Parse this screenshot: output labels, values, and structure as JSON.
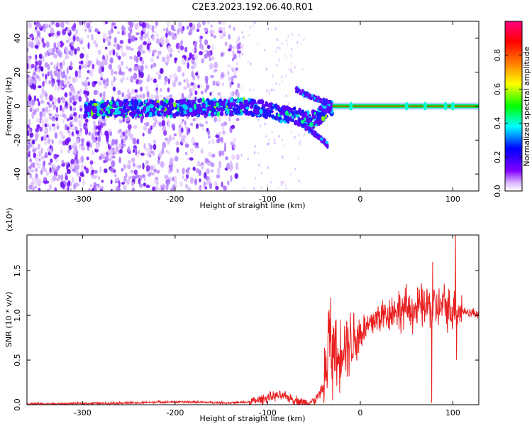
{
  "title": "C2E3.2023.192.06.40.R01",
  "chart_data": [
    {
      "type": "heatmap",
      "title": "C2E3.2023.192.06.40.R01",
      "xlabel": "Height of straight line (km)",
      "ylabel": "Frequency (Hz)",
      "xlim": [
        -360,
        128
      ],
      "ylim": [
        -50,
        50
      ],
      "x_ticks": [
        -300,
        -200,
        -100,
        0,
        100
      ],
      "x_tick_labels": [
        "-300",
        "-200",
        "-100",
        "0",
        "100"
      ],
      "y_ticks": [
        -40,
        -20,
        0,
        20,
        40
      ],
      "y_tick_labels": [
        "-40",
        "-20",
        "0",
        "20",
        "40"
      ],
      "colorbar": {
        "label": "Normalized spectral amplitude",
        "range": [
          0.0,
          1.0
        ],
        "ticks": [
          0.0,
          0.2,
          0.4,
          0.6,
          0.8
        ],
        "tick_labels": [
          "0.0",
          "0.2",
          "0.4",
          "0.6",
          "0.8"
        ],
        "colormap": "rainbow",
        "stops": [
          "#ffffff",
          "#8000ff",
          "#0000ff",
          "#00ffff",
          "#00ff00",
          "#ffff00",
          "#ff8000",
          "#ff0000",
          "#ff0080"
        ]
      },
      "features": [
        {
          "name": "noise cloud",
          "x_range": [
            -360,
            -130
          ],
          "y_range": [
            -50,
            50
          ],
          "amplitude": 0.05
        },
        {
          "name": "central band",
          "x": [
            -300,
            -200,
            -120,
            -80,
            -50,
            -30
          ],
          "y": [
            -2,
            -1,
            0,
            -5,
            -8,
            0
          ],
          "amplitude": 0.3
        },
        {
          "name": "upper branch",
          "x": [
            -70,
            -55,
            -40,
            -30
          ],
          "y": [
            10,
            6,
            3,
            1
          ],
          "amplitude": 0.15
        },
        {
          "name": "lower branch",
          "x": [
            -60,
            -45,
            -35
          ],
          "y": [
            -12,
            -18,
            -23
          ],
          "amplitude": 0.15
        },
        {
          "name": "tone line",
          "x_range": [
            -30,
            128
          ],
          "y": 0,
          "amplitude": 0.9
        }
      ],
      "grid": false
    },
    {
      "type": "line",
      "xlabel": "Height of straight line (km)",
      "ylabel": "SNR (10 * v/v)",
      "y_multiplier": "(x10⁴)",
      "xlim": [
        -360,
        128
      ],
      "ylim": [
        0,
        1.9
      ],
      "x_ticks": [
        -300,
        -200,
        -100,
        0,
        100
      ],
      "x_tick_labels": [
        "-300",
        "-200",
        "-100",
        "0",
        "100"
      ],
      "y_ticks": [
        0.0,
        0.5,
        1.0,
        1.5
      ],
      "y_tick_labels": [
        "0.0",
        "0.5",
        "1.0",
        "1.5"
      ],
      "color": "#e82020",
      "grid": false,
      "series": [
        {
          "x": [
            -360,
            -340,
            -320,
            -300,
            -280,
            -260,
            -240,
            -220,
            -200,
            -180,
            -160,
            -140,
            -120,
            -110,
            -100,
            -90,
            -80,
            -70,
            -60,
            -50,
            -45,
            -40,
            -36,
            -34,
            -32,
            -30,
            -28,
            -26,
            -24,
            -22,
            -20,
            -15,
            -10,
            -5,
            0,
            5,
            10,
            15,
            20,
            25,
            30,
            35,
            40,
            45,
            50,
            55,
            60,
            65,
            70,
            75,
            77,
            80,
            85,
            90,
            95,
            100,
            103,
            105,
            110,
            115,
            120,
            128
          ],
          "y": [
            0.01,
            0.01,
            0.01,
            0.015,
            0.015,
            0.02,
            0.02,
            0.03,
            0.03,
            0.03,
            0.025,
            0.02,
            0.03,
            0.05,
            0.08,
            0.1,
            0.09,
            0.05,
            0.02,
            0.04,
            0.1,
            0.2,
            0.4,
            0.9,
            0.6,
            0.5,
            0.8,
            0.55,
            0.45,
            0.6,
            0.7,
            0.7,
            0.72,
            0.75,
            0.8,
            0.85,
            0.88,
            0.95,
            0.98,
            1.0,
            1.02,
            1.05,
            1.06,
            1.05,
            1.08,
            1.07,
            1.05,
            1.1,
            1.08,
            1.12,
            1.05,
            1.1,
            1.07,
            1.12,
            1.08,
            1.05,
            1.1,
            1.06,
            1.05,
            1.04,
            1.03,
            1.02
          ]
        }
      ]
    }
  ]
}
